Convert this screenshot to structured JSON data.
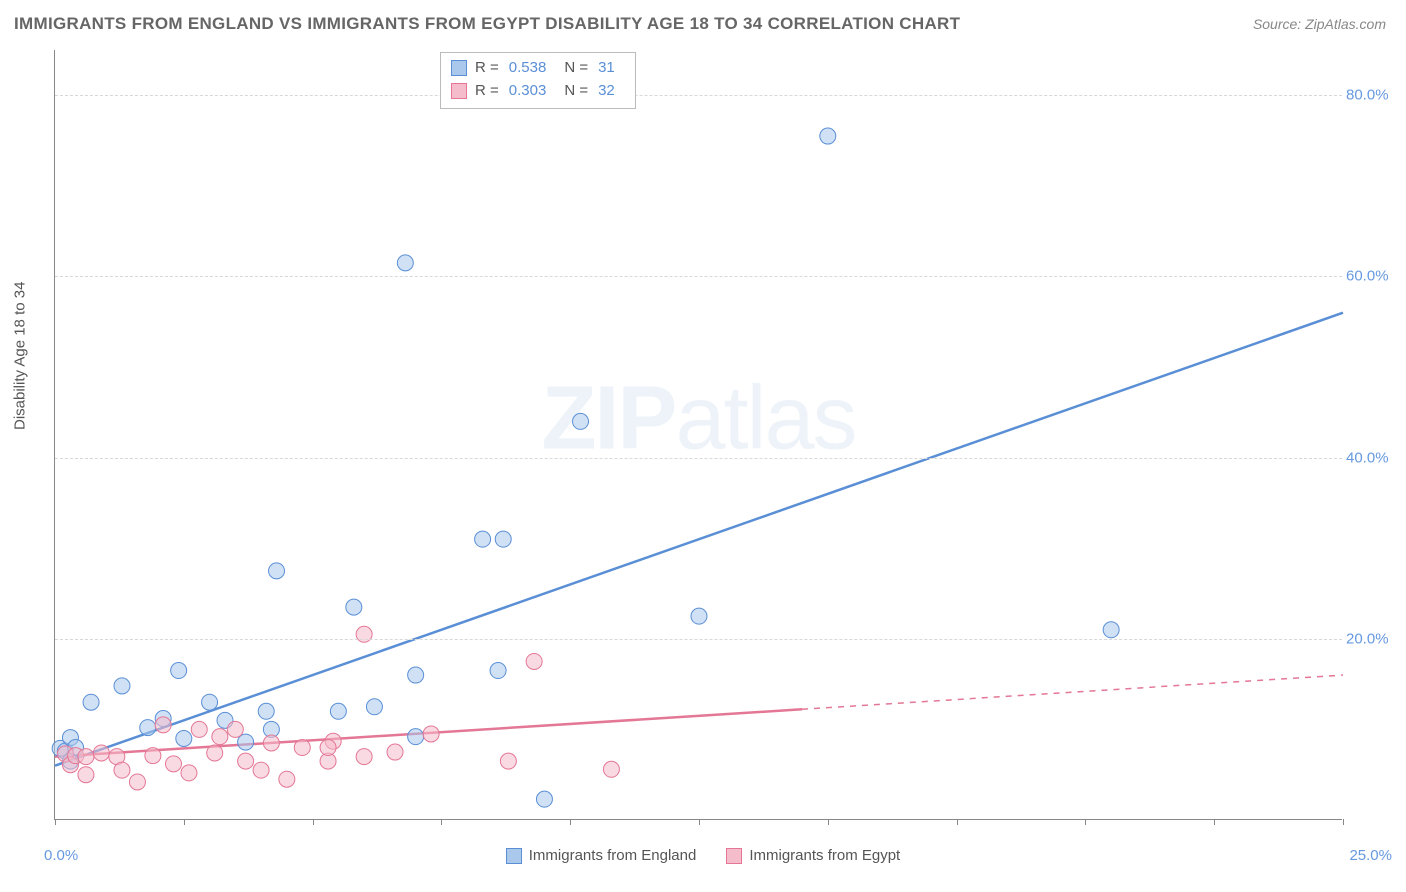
{
  "title": "IMMIGRANTS FROM ENGLAND VS IMMIGRANTS FROM EGYPT DISABILITY AGE 18 TO 34 CORRELATION CHART",
  "source": "Source: ZipAtlas.com",
  "ylabel": "Disability Age 18 to 34",
  "watermark_a": "ZIP",
  "watermark_b": "atlas",
  "chart": {
    "type": "scatter",
    "xlim": [
      0,
      25
    ],
    "ylim": [
      0,
      85
    ],
    "x_tick_min": "0.0%",
    "x_tick_max": "25.0%",
    "y_ticks": [
      {
        "v": 20,
        "label": "20.0%"
      },
      {
        "v": 40,
        "label": "40.0%"
      },
      {
        "v": 60,
        "label": "60.0%"
      },
      {
        "v": 80,
        "label": "80.0%"
      }
    ],
    "x_tick_positions": [
      0,
      2.5,
      5,
      7.5,
      10,
      12.5,
      15,
      17.5,
      20,
      22.5,
      25
    ],
    "background_color": "#ffffff",
    "grid_color": "#d8d8d8",
    "marker_radius": 8,
    "marker_opacity": 0.55,
    "series": [
      {
        "name": "Immigrants from England",
        "color_fill": "#a9c8ec",
        "color_stroke": "#5a8fd6",
        "R": "0.538",
        "N": "31",
        "trend": {
          "x1": 0,
          "y1": 6,
          "x2": 25,
          "y2": 56,
          "dash_from_x": null
        },
        "points": [
          [
            0.1,
            7.9
          ],
          [
            0.2,
            7.6
          ],
          [
            0.3,
            9.1
          ],
          [
            0.3,
            6.5
          ],
          [
            0.4,
            8.0
          ],
          [
            0.7,
            13.0
          ],
          [
            1.3,
            14.8
          ],
          [
            1.8,
            10.2
          ],
          [
            2.4,
            16.5
          ],
          [
            2.1,
            11.2
          ],
          [
            2.5,
            9.0
          ],
          [
            3.0,
            13.0
          ],
          [
            3.3,
            11.0
          ],
          [
            4.2,
            10.0
          ],
          [
            4.3,
            27.5
          ],
          [
            4.1,
            12.0
          ],
          [
            3.7,
            8.6
          ],
          [
            5.5,
            12.0
          ],
          [
            5.8,
            23.5
          ],
          [
            6.2,
            12.5
          ],
          [
            7.0,
            16.0
          ],
          [
            6.8,
            61.5
          ],
          [
            7.0,
            9.2
          ],
          [
            8.3,
            31.0
          ],
          [
            8.7,
            31.0
          ],
          [
            8.6,
            16.5
          ],
          [
            9.5,
            2.3
          ],
          [
            10.2,
            44.0
          ],
          [
            12.5,
            22.5
          ],
          [
            15.0,
            75.5
          ],
          [
            20.5,
            21.0
          ]
        ]
      },
      {
        "name": "Immigrants from Egypt",
        "color_fill": "#f5bccb",
        "color_stroke": "#e37795",
        "R": "0.303",
        "N": "32",
        "trend": {
          "x1": 0,
          "y1": 7,
          "x2": 25,
          "y2": 16,
          "dash_from_x": 14.5
        },
        "points": [
          [
            0.2,
            7.3
          ],
          [
            0.3,
            6.1
          ],
          [
            0.4,
            7.1
          ],
          [
            0.6,
            7.0
          ],
          [
            0.6,
            5.0
          ],
          [
            0.9,
            7.4
          ],
          [
            1.2,
            7.0
          ],
          [
            1.3,
            5.5
          ],
          [
            1.6,
            4.2
          ],
          [
            1.9,
            7.1
          ],
          [
            2.1,
            10.5
          ],
          [
            2.3,
            6.2
          ],
          [
            2.6,
            5.2
          ],
          [
            2.8,
            10.0
          ],
          [
            3.1,
            7.4
          ],
          [
            3.2,
            9.2
          ],
          [
            3.5,
            10.0
          ],
          [
            3.7,
            6.5
          ],
          [
            4.0,
            5.5
          ],
          [
            4.2,
            8.5
          ],
          [
            4.5,
            4.5
          ],
          [
            4.8,
            8.0
          ],
          [
            5.3,
            6.5
          ],
          [
            5.4,
            8.7
          ],
          [
            5.3,
            8.0
          ],
          [
            6.0,
            7.0
          ],
          [
            6.0,
            20.5
          ],
          [
            6.6,
            7.5
          ],
          [
            7.3,
            9.5
          ],
          [
            8.8,
            6.5
          ],
          [
            9.3,
            17.5
          ],
          [
            10.8,
            5.6
          ]
        ]
      }
    ]
  },
  "legend_bottom": [
    {
      "label": "Immigrants from England",
      "fill": "#a9c8ec",
      "stroke": "#5a8fd6"
    },
    {
      "label": "Immigrants from Egypt",
      "fill": "#f5bccb",
      "stroke": "#e37795"
    }
  ]
}
